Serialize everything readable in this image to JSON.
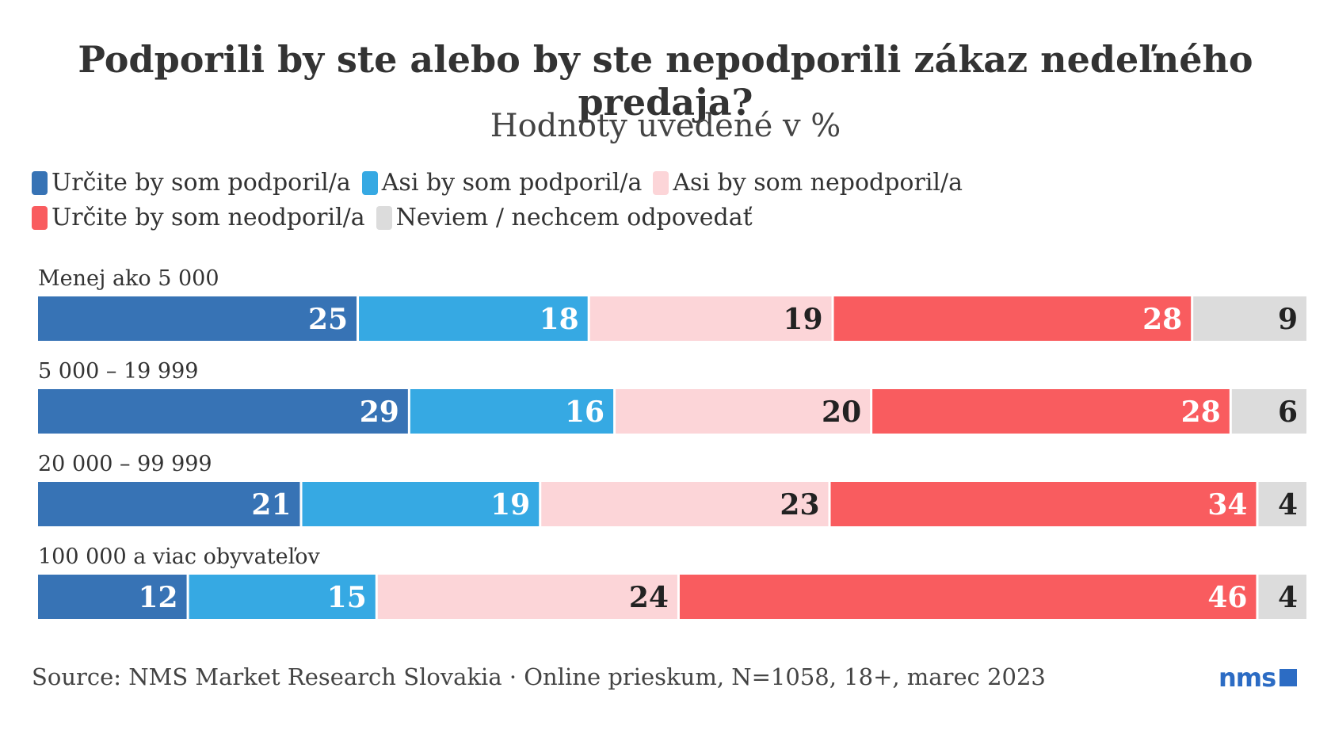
{
  "chart_data": {
    "type": "bar",
    "orientation": "horizontal",
    "stacked": true,
    "title": "Podporili by ste alebo by ste nepodporili zákaz nedeľného predaja?",
    "subtitle": "Hodnoty uvedené v %",
    "categories": [
      "Menej ako 5 000",
      "5 000 – 19 999",
      "20 000 – 99 999",
      "100 000 a viac obyvateľov"
    ],
    "series": [
      {
        "name": "Určite by som podporil/a",
        "color": "#3773b5",
        "label_color": "#ffffff",
        "values": [
          25,
          29,
          21,
          12
        ]
      },
      {
        "name": "Asi by som podporil/a",
        "color": "#36a9e3",
        "label_color": "#ffffff",
        "values": [
          18,
          16,
          19,
          15
        ]
      },
      {
        "name": "Asi by som nepodporil/a",
        "color": "#fcd5d8",
        "label_color": "#222222",
        "values": [
          19,
          20,
          23,
          24
        ]
      },
      {
        "name": "Určite by som neodporil/a",
        "color": "#f95c5f",
        "label_color": "#ffffff",
        "values": [
          28,
          28,
          34,
          46
        ]
      },
      {
        "name": "Neviem / nechcem odpovedať",
        "color": "#dcdcdc",
        "label_color": "#222222",
        "values": [
          9,
          6,
          4,
          4
        ]
      }
    ],
    "legend_position": "top-left",
    "grid": false
  },
  "source": "Source: NMS Market Research Slovakia · Online prieskum, N=1058, 18+, marec 2023",
  "logo_text": "nms"
}
